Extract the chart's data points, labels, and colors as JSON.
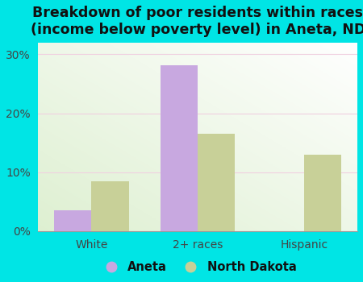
{
  "title": "Breakdown of poor residents within races\n(income below poverty level) in Aneta, ND",
  "categories": [
    "White",
    "2+ races",
    "Hispanic"
  ],
  "aneta_values": [
    3.5,
    28.2,
    0.0
  ],
  "nd_values": [
    8.5,
    16.5,
    13.0
  ],
  "aneta_color": "#c8a8e0",
  "nd_color": "#c8d098",
  "bar_width": 0.35,
  "ylim": [
    0,
    32
  ],
  "yticks": [
    0,
    10,
    20,
    30
  ],
  "yticklabels": [
    "0%",
    "10%",
    "20%",
    "30%"
  ],
  "bg_outer": "#00e5e5",
  "title_fontsize": 12.5,
  "tick_fontsize": 10,
  "legend_fontsize": 10.5,
  "grid_color": "#e8e8e8"
}
